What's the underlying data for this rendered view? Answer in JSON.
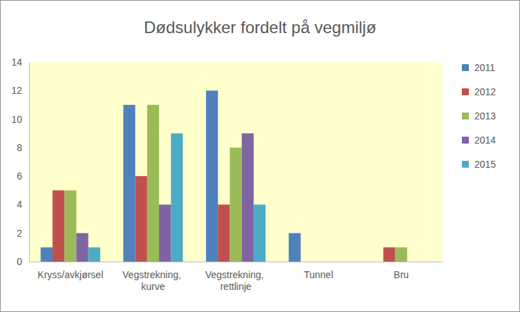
{
  "chart_data": {
    "type": "bar",
    "title": "Dødsulykker fordelt på vegmiljø",
    "categories": [
      "Kryss/avkjørsel",
      "Vegstrekning, kurve",
      "Vegstrekning, rettlinje",
      "Tunnel",
      "Bru"
    ],
    "series": [
      {
        "name": "2011",
        "color": "#4f81bd",
        "values": [
          1,
          11,
          12,
          2,
          0
        ]
      },
      {
        "name": "2012",
        "color": "#c0504d",
        "values": [
          5,
          6,
          4,
          0,
          1
        ]
      },
      {
        "name": "2013",
        "color": "#9bbb59",
        "values": [
          5,
          11,
          8,
          0,
          1
        ]
      },
      {
        "name": "2014",
        "color": "#8064a2",
        "values": [
          2,
          4,
          9,
          0,
          0
        ]
      },
      {
        "name": "2015",
        "color": "#4bacc6",
        "values": [
          1,
          9,
          4,
          0,
          0
        ]
      }
    ],
    "ylim": [
      0,
      14
    ],
    "yticks": [
      0,
      2,
      4,
      6,
      8,
      10,
      12,
      14
    ],
    "grid": false,
    "legend": "right",
    "data_labels": false
  }
}
